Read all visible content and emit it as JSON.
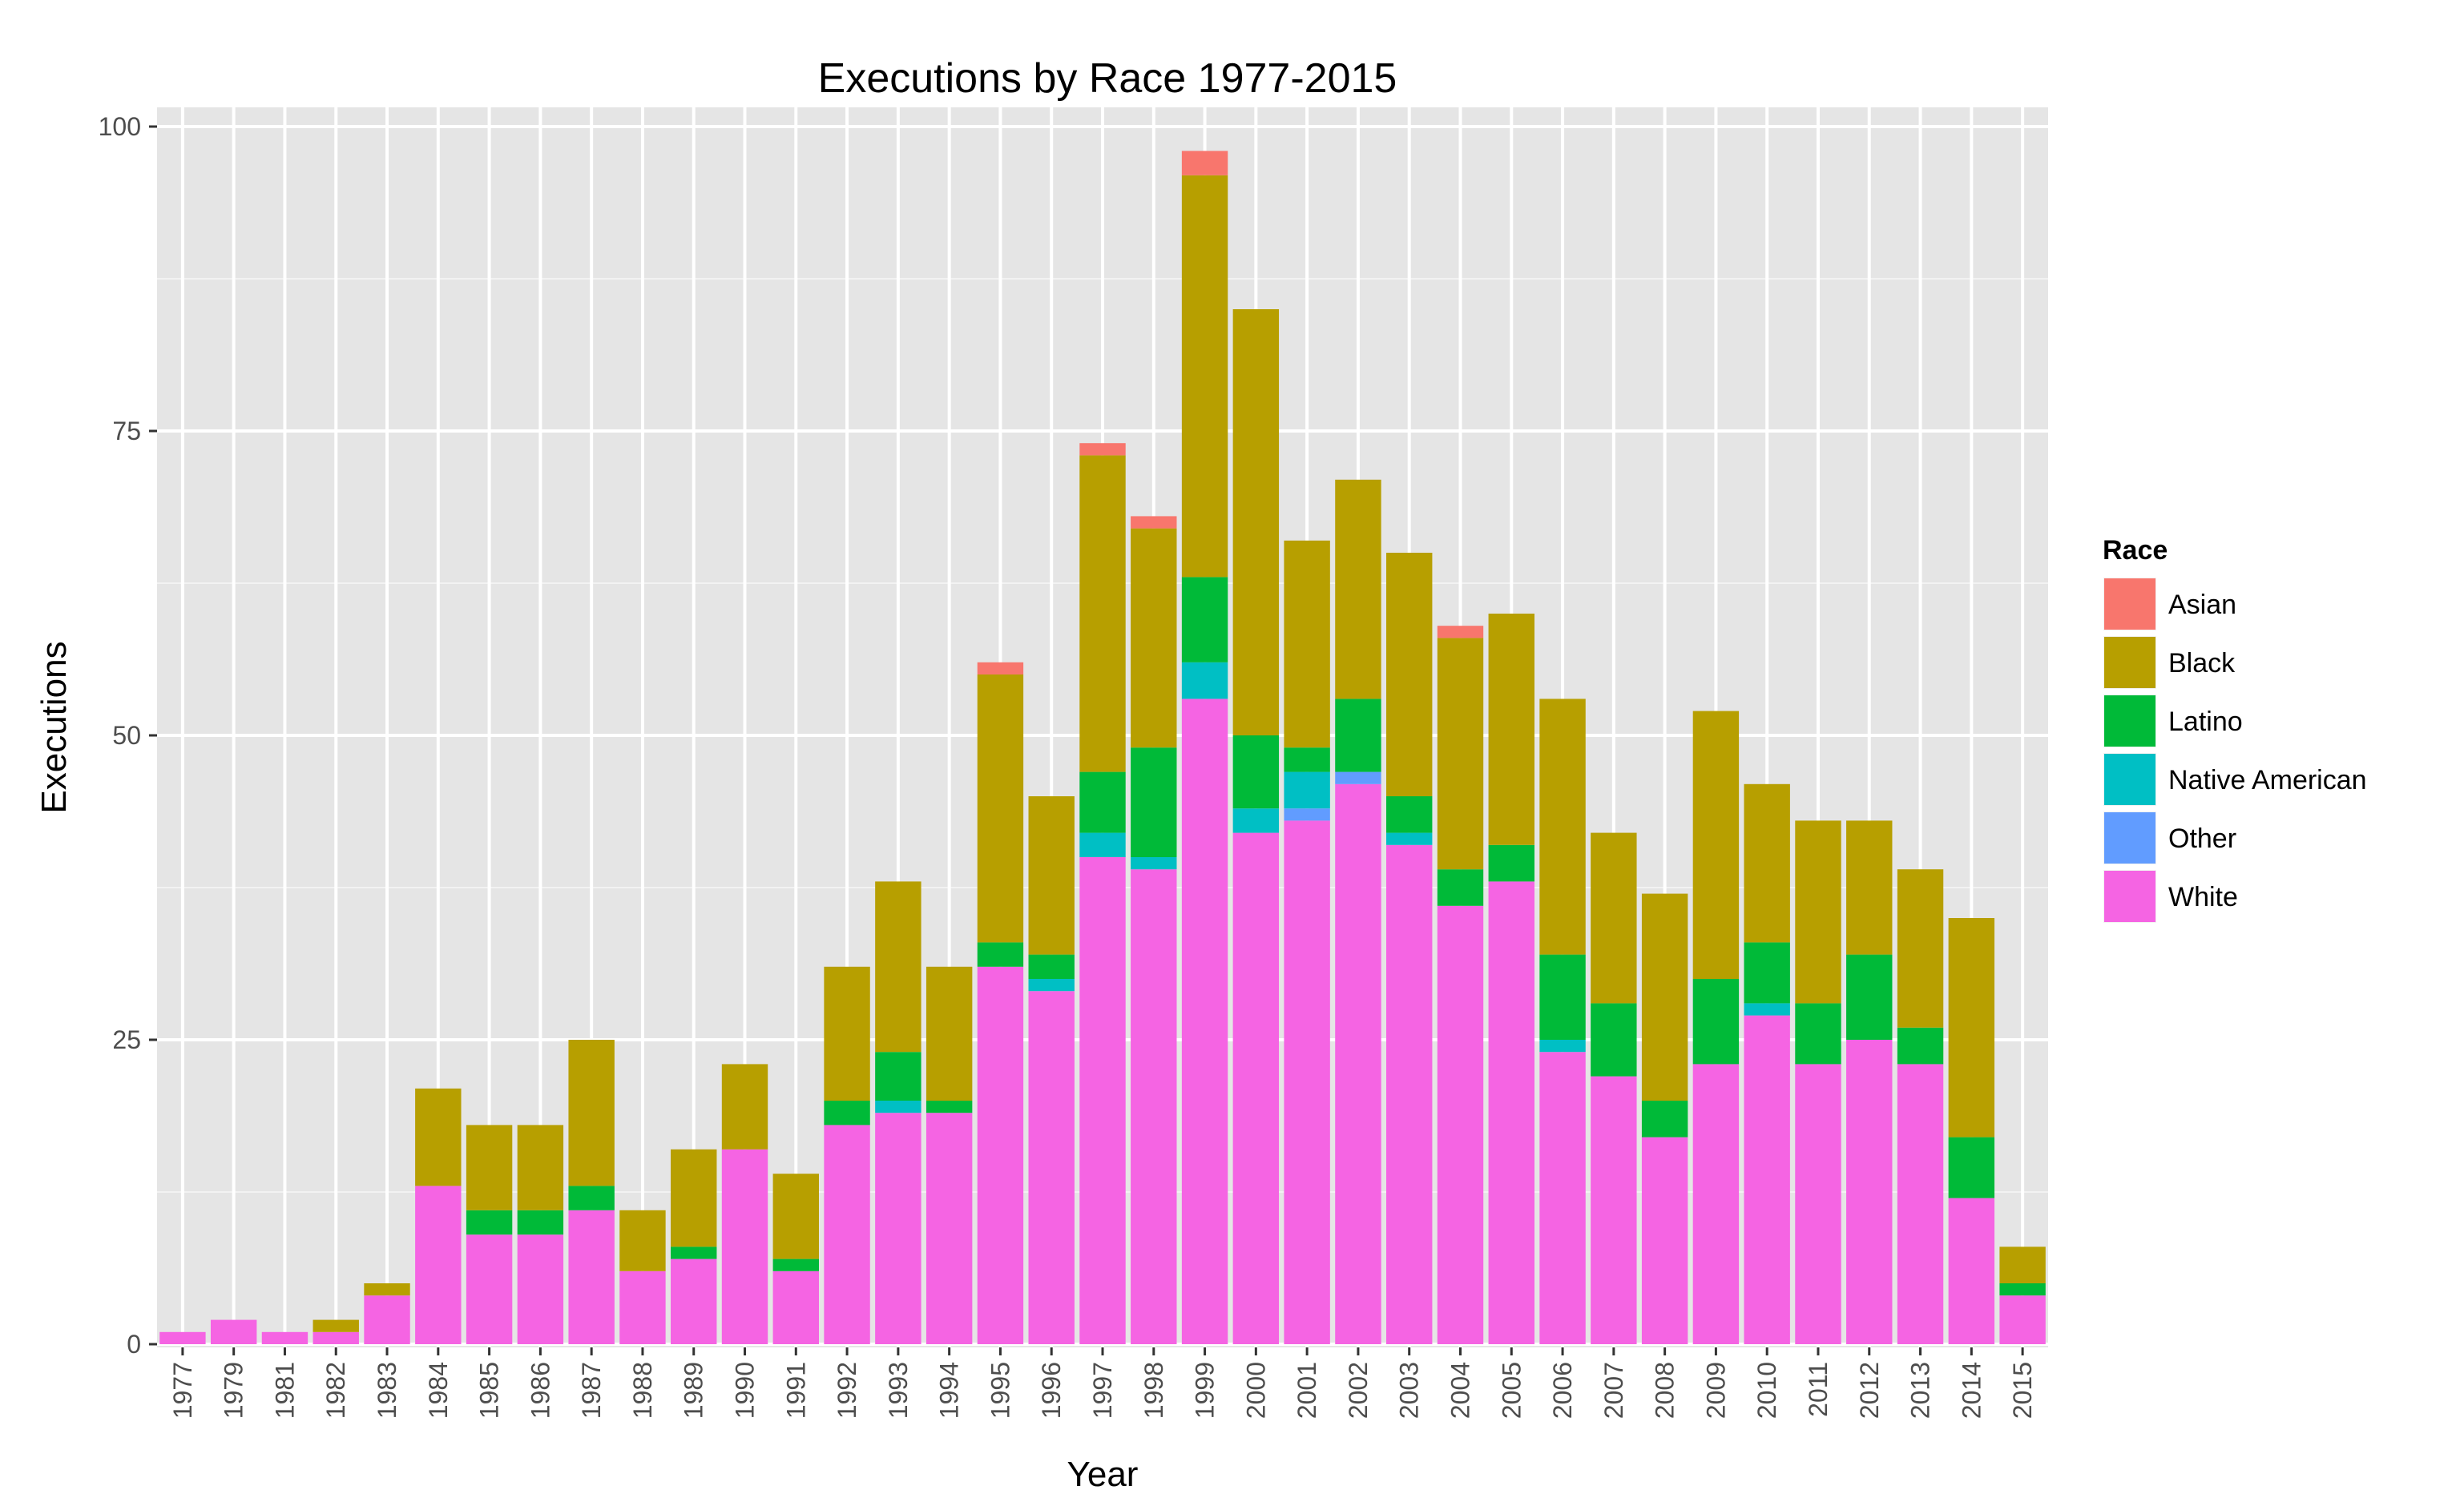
{
  "chart_data": {
    "type": "bar",
    "stacked": true,
    "title": "Executions by Race 1977-2015",
    "xlabel": "Year",
    "ylabel": "Executions",
    "ylim": [
      0,
      100
    ],
    "yticks": [
      0,
      25,
      50,
      75,
      100
    ],
    "grid": true,
    "legend_title": "Race",
    "legend_position": "right",
    "categories": [
      "1977",
      "1979",
      "1981",
      "1982",
      "1983",
      "1984",
      "1985",
      "1986",
      "1987",
      "1988",
      "1989",
      "1990",
      "1991",
      "1992",
      "1993",
      "1994",
      "1995",
      "1996",
      "1997",
      "1998",
      "1999",
      "2000",
      "2001",
      "2002",
      "2003",
      "2004",
      "2005",
      "2006",
      "2007",
      "2008",
      "2009",
      "2010",
      "2011",
      "2012",
      "2013",
      "2014",
      "2015"
    ],
    "stack_order": [
      "White",
      "Other",
      "Native American",
      "Latino",
      "Black",
      "Asian"
    ],
    "series": [
      {
        "name": "Asian",
        "color": "#F8766D",
        "values": [
          0,
          0,
          0,
          0,
          0,
          0,
          0,
          0,
          0,
          0,
          0,
          0,
          0,
          0,
          0,
          0,
          1,
          0,
          1,
          1,
          2,
          0,
          0,
          0,
          0,
          1,
          0,
          0,
          0,
          0,
          0,
          0,
          0,
          0,
          0,
          0,
          0
        ]
      },
      {
        "name": "Black",
        "color": "#B79F00",
        "values": [
          0,
          0,
          0,
          1,
          1,
          8,
          7,
          7,
          12,
          5,
          8,
          7,
          7,
          11,
          14,
          11,
          22,
          13,
          26,
          18,
          33,
          35,
          17,
          18,
          20,
          19,
          19,
          21,
          14,
          17,
          22,
          13,
          15,
          11,
          13,
          18,
          3
        ]
      },
      {
        "name": "Latino",
        "color": "#00BA38",
        "values": [
          0,
          0,
          0,
          0,
          0,
          0,
          2,
          2,
          2,
          0,
          1,
          0,
          1,
          2,
          4,
          1,
          2,
          2,
          5,
          9,
          7,
          6,
          2,
          6,
          3,
          3,
          3,
          7,
          6,
          3,
          7,
          5,
          5,
          7,
          3,
          5,
          1
        ]
      },
      {
        "name": "Native American",
        "color": "#00BFC4",
        "values": [
          0,
          0,
          0,
          0,
          0,
          0,
          0,
          0,
          0,
          0,
          0,
          0,
          0,
          0,
          1,
          0,
          0,
          1,
          2,
          1,
          3,
          2,
          3,
          0,
          1,
          0,
          0,
          1,
          0,
          0,
          0,
          1,
          0,
          0,
          0,
          0,
          0
        ]
      },
      {
        "name": "Other",
        "color": "#619CFF",
        "values": [
          0,
          0,
          0,
          0,
          0,
          0,
          0,
          0,
          0,
          0,
          0,
          0,
          0,
          0,
          0,
          0,
          0,
          0,
          0,
          0,
          0,
          0,
          1,
          1,
          0,
          0,
          0,
          0,
          0,
          0,
          0,
          0,
          0,
          0,
          0,
          0,
          0
        ]
      },
      {
        "name": "White",
        "color": "#F564E3",
        "values": [
          1,
          2,
          1,
          1,
          4,
          13,
          9,
          9,
          11,
          6,
          7,
          16,
          6,
          18,
          19,
          19,
          31,
          29,
          40,
          39,
          53,
          42,
          43,
          46,
          41,
          36,
          38,
          24,
          22,
          17,
          23,
          27,
          23,
          25,
          23,
          12,
          4
        ]
      }
    ]
  }
}
